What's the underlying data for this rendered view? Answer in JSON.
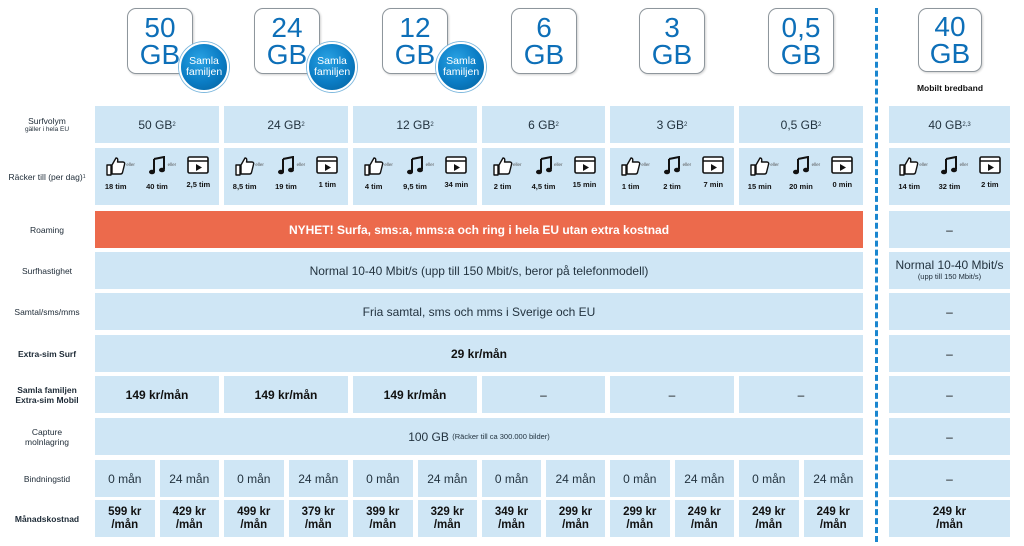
{
  "plans": [
    {
      "num": "50",
      "unit": "GB",
      "badge": "Samla familjen"
    },
    {
      "num": "24",
      "unit": "GB",
      "badge": "Samla familjen"
    },
    {
      "num": "12",
      "unit": "GB",
      "badge": "Samla familjen"
    },
    {
      "num": "6",
      "unit": "GB",
      "badge": ""
    },
    {
      "num": "3",
      "unit": "GB",
      "badge": ""
    },
    {
      "num": "0,5",
      "unit": "GB",
      "badge": ""
    }
  ],
  "broadband": {
    "num": "40",
    "unit": "GB",
    "caption": "Mobilt bredband"
  },
  "labels": {
    "surfvolym": "Surfvolym",
    "surfvolym_sub": "gäller i hela EU",
    "racker": "Räcker till (per dag)",
    "racker_sup": "1",
    "roaming": "Roaming",
    "surfhastighet": "Surfhastighet",
    "samtal": "Samtal/sms/mms",
    "extrasim": "Extra-sim Surf",
    "samla1": "Samla familjen",
    "samla2": "Extra-sim Mobil",
    "capture1": "Capture",
    "capture2": "molnlagring",
    "bindning": "Bindningstid",
    "manad": "Månadskostnad"
  },
  "volumes": [
    {
      "v": "50 GB",
      "sup": "2"
    },
    {
      "v": "24 GB",
      "sup": "2"
    },
    {
      "v": "12 GB",
      "sup": "2"
    },
    {
      "v": "6 GB",
      "sup": "2"
    },
    {
      "v": "3 GB",
      "sup": "2"
    },
    {
      "v": "0,5 GB",
      "sup": "2"
    }
  ],
  "bb_volume": {
    "v": "40 GB",
    "sup": "2,3"
  },
  "eller": "eller",
  "usage": [
    [
      "18 tim",
      "40 tim",
      "2,5 tim"
    ],
    [
      "8,5 tim",
      "19 tim",
      "1 tim"
    ],
    [
      "4 tim",
      "9,5 tim",
      "34 min"
    ],
    [
      "2 tim",
      "4,5 tim",
      "15 min"
    ],
    [
      "1 tim",
      "2 tim",
      "7 min"
    ],
    [
      "15 min",
      "20 min",
      "0 min"
    ]
  ],
  "bb_usage": [
    "14 tim",
    "32 tim",
    "2 tim"
  ],
  "roaming_text": "NYHET! Surfa, sms:a, mms:a och ring i hela EU utan extra kostnad",
  "roaming_color": "#ec6a4c",
  "bb_dash": "–",
  "speed_text": "Normal 10-40 Mbit/s (upp till 150 Mbit/s, beror på telefonmodell)",
  "bb_speed": "Normal 10-40 Mbit/s",
  "bb_speed_sub": "(upp till 150 Mbit/s)",
  "calls_text": "Fria samtal, sms och mms i Sverige och EU",
  "extrasim_text": "29 kr/mån",
  "samla_prices": [
    "149 kr/mån",
    "149 kr/mån",
    "149 kr/mån",
    "–",
    "–",
    "–"
  ],
  "capture_text": "100 GB",
  "capture_sub": "(Räcker till ca 300.000 bilder)",
  "bindning": [
    "0 mån",
    "24 mån"
  ],
  "prices": [
    [
      "599 kr",
      "/mån",
      "429 kr",
      "/mån"
    ],
    [
      "499 kr",
      "/mån",
      "379 kr",
      "/mån"
    ],
    [
      "399 kr",
      "/mån",
      "329 kr",
      "/mån"
    ],
    [
      "349 kr",
      "/mån",
      "299 kr",
      "/mån"
    ],
    [
      "299 kr",
      "/mån",
      "249 kr",
      "/mån"
    ],
    [
      "249 kr",
      "/mån",
      "249 kr",
      "/mån"
    ]
  ],
  "bb_price": [
    "249 kr",
    "/mån"
  ],
  "colors": {
    "cell": "#cfe6f5",
    "accent": "#0d6fb8",
    "roaming": "#ec6a4c",
    "divider": "#1a86cf"
  }
}
